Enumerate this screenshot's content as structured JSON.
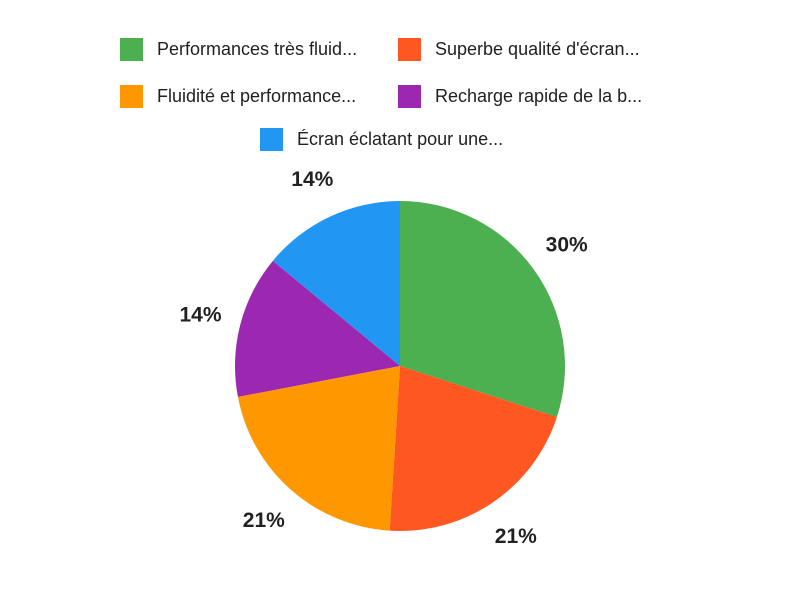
{
  "chart_data": {
    "type": "pie",
    "title": "",
    "legend_position": "top",
    "direction": "clockwise",
    "start_angle_deg": 0,
    "background": "#ffffff",
    "legend_text_color": "#212121",
    "label_text_color": "#212121",
    "categories": [
      "Performances très fluid...",
      "Superbe qualité d'écran...",
      "Fluidité et performance...",
      "Recharge rapide de la b...",
      "Écran éclatant pour une..."
    ],
    "values": [
      30,
      21,
      21,
      14,
      14
    ],
    "slices": [
      {
        "label": "Performances très fluid...",
        "value": 30,
        "percent_label": "30%",
        "color": "#4caf50"
      },
      {
        "label": "Superbe qualité d'écran...",
        "value": 21,
        "percent_label": "21%",
        "color": "#ff5722"
      },
      {
        "label": "Fluidité et performance...",
        "value": 21,
        "percent_label": "21%",
        "color": "#ff9800"
      },
      {
        "label": "Recharge rapide de la b...",
        "value": 14,
        "percent_label": "14%",
        "color": "#9c27b0"
      },
      {
        "label": "Écran éclatant pour une...",
        "value": 14,
        "percent_label": "14%",
        "color": "#2196f3"
      }
    ]
  }
}
